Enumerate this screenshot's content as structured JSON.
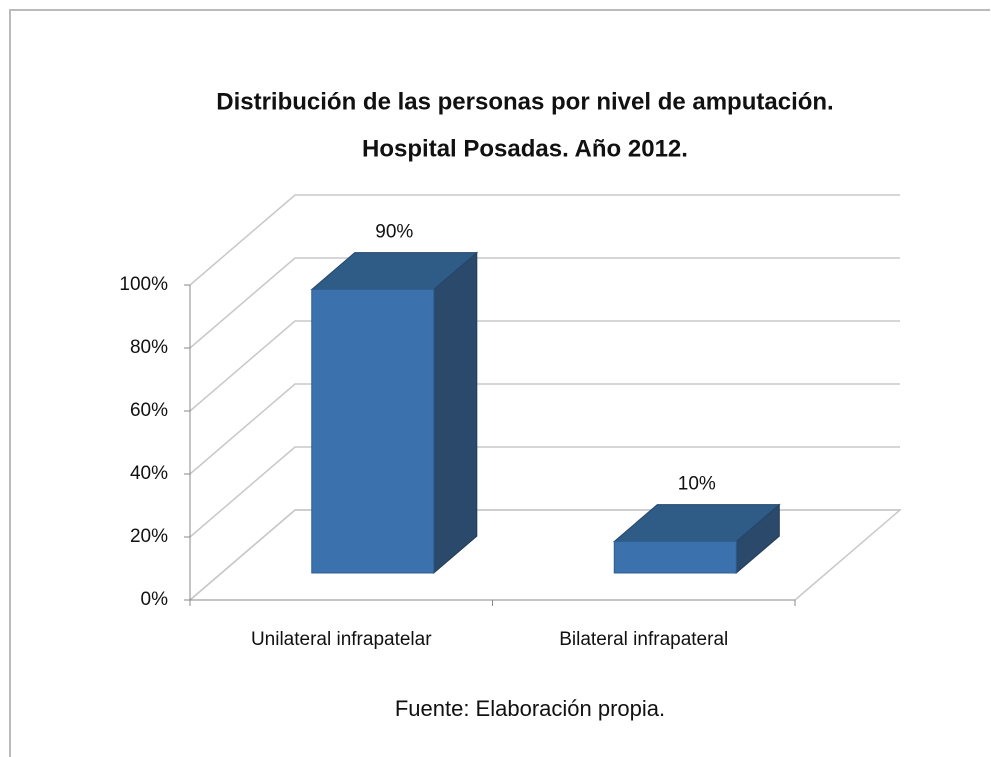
{
  "chart_data": {
    "type": "bar3d",
    "title": "Distribución de las personas por nivel de amputación.",
    "subtitle": "Hospital Posadas. Año 2012.",
    "source": "Fuente: Elaboración propia.",
    "categories": [
      "Unilateral infrapatelar",
      "Bilateral infrapateral"
    ],
    "values": [
      90,
      10
    ],
    "value_labels": [
      "90%",
      "10%"
    ],
    "color": "#3b72ad",
    "ylim": [
      0,
      100
    ],
    "yticks": [
      {
        "value": 0,
        "label": "0%"
      },
      {
        "value": 20,
        "label": "20%"
      },
      {
        "value": 40,
        "label": "40%"
      },
      {
        "value": 60,
        "label": "60%"
      },
      {
        "value": 80,
        "label": "80%"
      },
      {
        "value": 100,
        "label": "100%"
      }
    ],
    "grid": true
  }
}
